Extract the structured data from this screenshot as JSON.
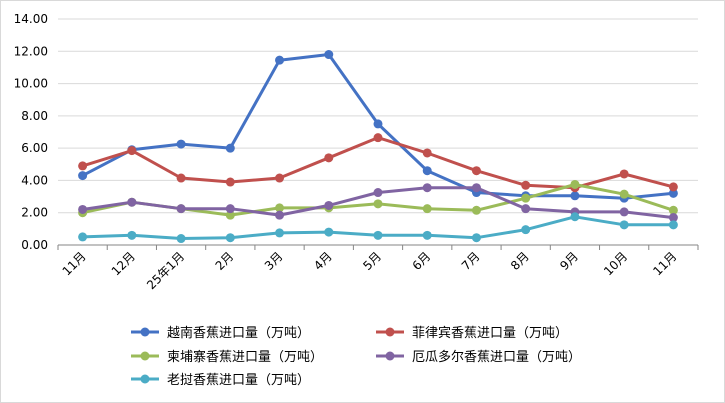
{
  "chart_data": {
    "type": "line",
    "title": "",
    "xlabel": "",
    "ylabel": "",
    "ylim": [
      0,
      14
    ],
    "yticks": [
      "0.00",
      "2.00",
      "4.00",
      "6.00",
      "8.00",
      "10.00",
      "12.00",
      "14.00"
    ],
    "grid": "horizontal",
    "legend_position": "bottom",
    "categories": [
      "11月",
      "12月",
      "25年1月",
      "2月",
      "3月",
      "4月",
      "5月",
      "6月",
      "7月",
      "8月",
      "9月",
      "10月",
      "11月"
    ],
    "series": [
      {
        "name": "越南香蕉进口量（万吨）",
        "color": "#4472c4",
        "values": [
          4.3,
          5.9,
          6.25,
          6.0,
          11.45,
          11.8,
          7.5,
          4.6,
          3.25,
          3.05,
          3.05,
          2.9,
          3.2
        ]
      },
      {
        "name": "菲律宾香蕉进口量（万吨）",
        "color": "#c0504d",
        "values": [
          4.9,
          5.85,
          4.15,
          3.9,
          4.15,
          5.4,
          6.65,
          5.7,
          4.6,
          3.7,
          3.55,
          4.4,
          3.6
        ]
      },
      {
        "name": "柬埔寨香蕉进口量（万吨）",
        "color": "#9bbb59",
        "values": [
          2.0,
          2.65,
          2.25,
          1.85,
          2.3,
          2.3,
          2.55,
          2.25,
          2.15,
          2.9,
          3.75,
          3.15,
          2.15
        ]
      },
      {
        "name": "厄瓜多尔香蕉进口量（万吨）",
        "color": "#8064a2",
        "values": [
          2.2,
          2.65,
          2.25,
          2.25,
          1.85,
          2.45,
          3.25,
          3.55,
          3.55,
          2.25,
          2.05,
          2.05,
          1.7
        ]
      },
      {
        "name": "老挝香蕉进口量（万吨）",
        "color": "#4bacc6",
        "values": [
          0.5,
          0.6,
          0.4,
          0.45,
          0.75,
          0.8,
          0.6,
          0.6,
          0.45,
          0.95,
          1.75,
          1.25,
          1.25
        ]
      }
    ]
  }
}
